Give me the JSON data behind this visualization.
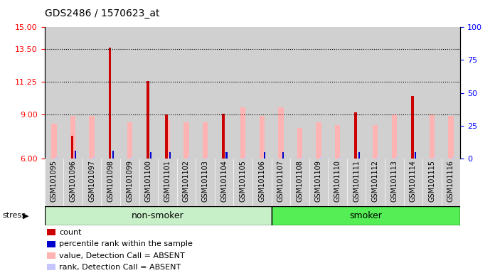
{
  "title": "GDS2486 / 1570623_at",
  "samples": [
    "GSM101095",
    "GSM101096",
    "GSM101097",
    "GSM101098",
    "GSM101099",
    "GSM101100",
    "GSM101101",
    "GSM101102",
    "GSM101103",
    "GSM101104",
    "GSM101105",
    "GSM101106",
    "GSM101107",
    "GSM101108",
    "GSM101109",
    "GSM101110",
    "GSM101111",
    "GSM101112",
    "GSM101113",
    "GSM101114",
    "GSM101115",
    "GSM101116"
  ],
  "red_bars": [
    6.0,
    7.55,
    6.0,
    13.6,
    6.0,
    11.3,
    9.0,
    6.0,
    6.0,
    9.05,
    6.0,
    6.0,
    6.0,
    6.0,
    6.0,
    6.0,
    9.15,
    6.0,
    6.0,
    10.3,
    6.0,
    6.0
  ],
  "blue_bars": [
    6.0,
    6.5,
    6.0,
    6.5,
    6.0,
    6.45,
    6.45,
    6.0,
    6.0,
    6.45,
    6.0,
    6.45,
    6.45,
    6.0,
    6.0,
    6.0,
    6.45,
    6.0,
    6.0,
    6.45,
    6.0,
    6.0
  ],
  "pink_bars": [
    8.4,
    8.9,
    8.9,
    6.0,
    8.5,
    6.0,
    8.6,
    8.5,
    8.5,
    6.0,
    9.5,
    8.9,
    9.5,
    8.1,
    8.5,
    8.3,
    6.0,
    8.3,
    9.0,
    6.0,
    9.0,
    8.9
  ],
  "lightblue_bars": [
    6.1,
    6.1,
    6.1,
    6.0,
    6.1,
    6.0,
    6.1,
    6.1,
    6.1,
    6.0,
    6.1,
    6.1,
    6.1,
    6.1,
    6.1,
    6.1,
    6.0,
    6.1,
    6.1,
    6.0,
    6.1,
    6.1
  ],
  "non_smoker_count": 12,
  "smoker_count": 10,
  "ymin": 6,
  "ymax": 15,
  "yticks_left": [
    6,
    9,
    11.25,
    13.5,
    15
  ],
  "yticks_right": [
    0,
    25,
    50,
    75,
    100
  ],
  "color_red": "#cc0000",
  "color_blue": "#0000cc",
  "color_pink": "#ffb3b3",
  "color_lightblue": "#c5c5ff",
  "color_nonsmoker": "#c8f0c8",
  "color_smoker": "#55ee55",
  "color_bg_bars": "#d0d0d0",
  "stress_label": "stress",
  "nonsmoker_label": "non-smoker",
  "smoker_label": "smoker",
  "title_fontsize": 10,
  "tick_label_fontsize": 7,
  "legend_fontsize": 8,
  "group_fontsize": 9
}
